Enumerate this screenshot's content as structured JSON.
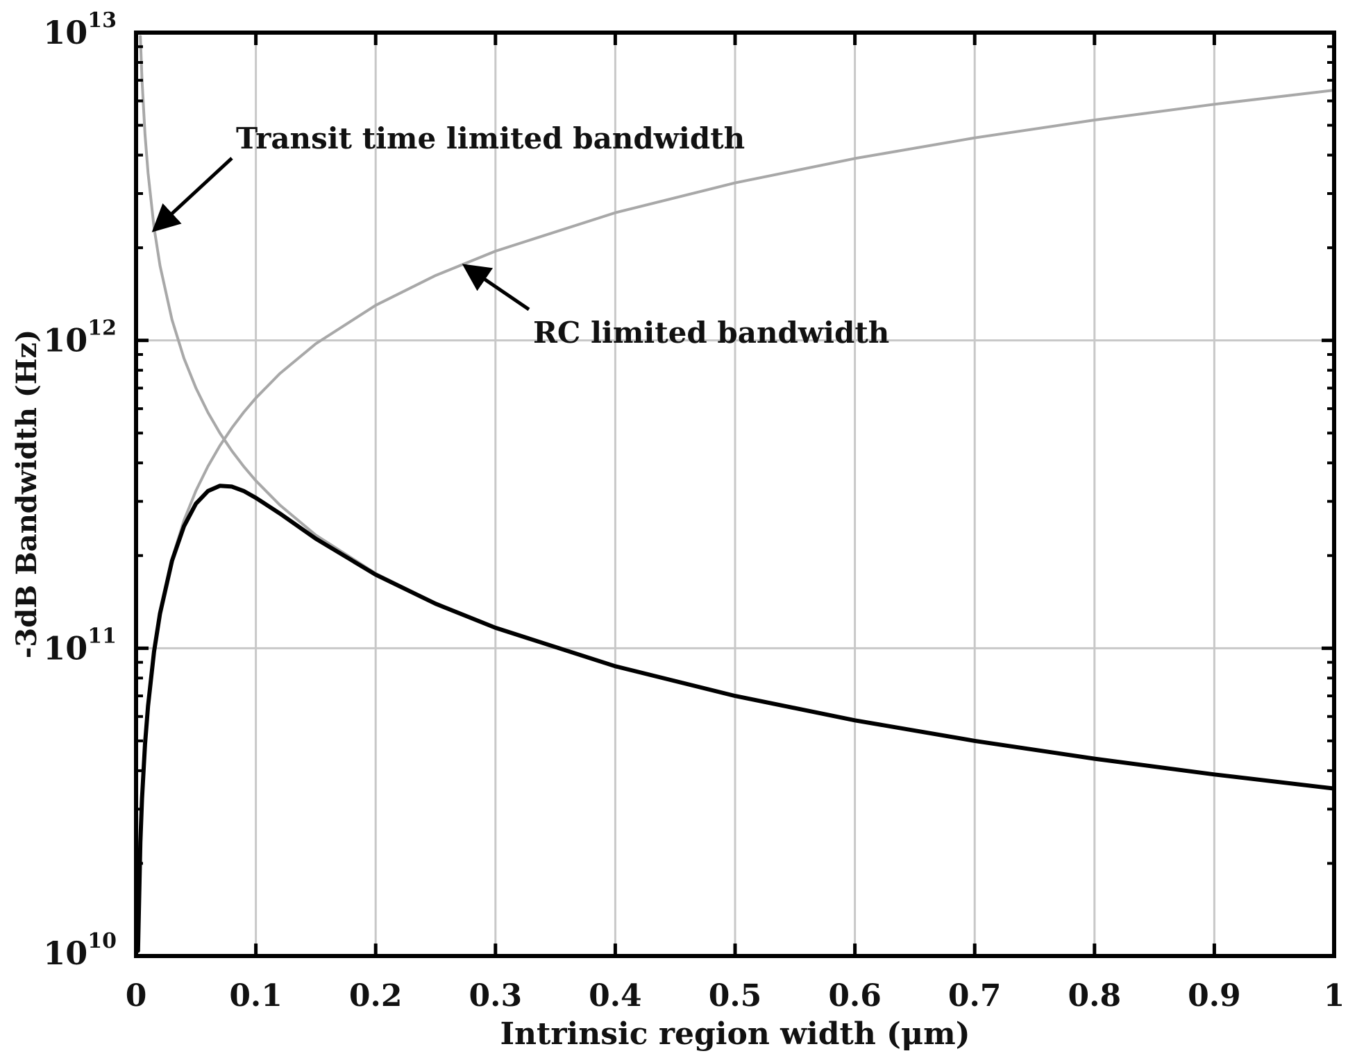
{
  "chart_data": {
    "type": "line",
    "title": "",
    "xlabel": "Intrinsic region width (μm)",
    "ylabel": "-3dB Bandwidth (Hz)",
    "xlim": [
      0,
      1
    ],
    "ylim": [
      10000000000.0,
      10000000000000.0
    ],
    "yscale": "log",
    "grid": true,
    "x_ticks": [
      "0",
      "0.1",
      "0.2",
      "0.3",
      "0.4",
      "0.5",
      "0.6",
      "0.7",
      "0.8",
      "0.9",
      "1"
    ],
    "y_ticks": [
      {
        "base": "10",
        "exp": "10"
      },
      {
        "base": "10",
        "exp": "11"
      },
      {
        "base": "10",
        "exp": "12"
      },
      {
        "base": "10",
        "exp": "13"
      }
    ],
    "series": [
      {
        "color": "#a8a8a8",
        "x": [
          0.0036,
          0.005,
          0.0075,
          0.01,
          0.015,
          0.02,
          0.03,
          0.04,
          0.05,
          0.06,
          0.07,
          0.08,
          0.09,
          0.1,
          0.12,
          0.15,
          0.2,
          0.25,
          0.3,
          0.4,
          0.5,
          0.6,
          0.7,
          0.8,
          0.9,
          1.0
        ],
        "y": [
          9720000000000.0,
          7000000000000.0,
          4670000000000.0,
          3500000000000.0,
          2330000000000.0,
          1750000000000.0,
          1167000000000.0,
          875000000000.0,
          700000000000.0,
          583000000000.0,
          500000000000.0,
          437500000000.0,
          389000000000.0,
          350000000000.0,
          292000000000.0,
          233000000000.0,
          175000000000.0,
          140000000000.0,
          116700000000.0,
          87500000000.0,
          70000000000.0,
          58300000000.0,
          50000000000.0,
          43750000000.0,
          38900000000.0,
          35000000000.0
        ]
      },
      {
        "color": "#a8a8a8",
        "x": [
          0.0016,
          0.0036,
          0.005,
          0.0075,
          0.01,
          0.015,
          0.02,
          0.03,
          0.04,
          0.05,
          0.06,
          0.07,
          0.08,
          0.09,
          0.1,
          0.12,
          0.15,
          0.2,
          0.25,
          0.3,
          0.4,
          0.5,
          0.6,
          0.7,
          0.8,
          0.9,
          1.0
        ],
        "y": [
          10400000000.0,
          23400000000.0,
          32500000000.0,
          48750000000.0,
          65000000000.0,
          97500000000.0,
          130000000000.0,
          195000000000.0,
          260000000000.0,
          325000000000.0,
          390000000000.0,
          455000000000.0,
          520000000000.0,
          585000000000.0,
          650000000000.0,
          780000000000.0,
          975000000000.0,
          1300000000000.0,
          1625000000000.0,
          1950000000000.0,
          2600000000000.0,
          3250000000000.0,
          3900000000000.0,
          4550000000000.0,
          5200000000000.0,
          5850000000000.0,
          6500000000000.0
        ]
      },
      {
        "color": "#000000",
        "x": [
          0.0016,
          0.0036,
          0.005,
          0.0075,
          0.01,
          0.015,
          0.02,
          0.03,
          0.04,
          0.05,
          0.06,
          0.07,
          0.08,
          0.09,
          0.1,
          0.12,
          0.15,
          0.2,
          0.25,
          0.3,
          0.4,
          0.5,
          0.6,
          0.7,
          0.8,
          0.9,
          1.0
        ],
        "y": [
          10400000000.0,
          23400000000.0,
          32500000000.0,
          48700000000.0,
          65000000000.0,
          97400000000.0,
          129600000000.0,
          192300000000.0,
          249000000000.0,
          295000000000.0,
          324000000000.0,
          337000000000.0,
          335000000000.0,
          324000000000.0,
          308000000000.0,
          274000000000.0,
          227000000000.0,
          173400000000.0,
          139500000000.0,
          116500000000.0,
          87400000000.0,
          70000000000.0,
          58300000000.0,
          50000000000.0,
          43750000000.0,
          38900000000.0,
          35000000000.0
        ]
      }
    ],
    "annotations": [
      {
        "text": "Transit time limited bandwidth",
        "points_to_x": 0.016,
        "points_to_y": 2200000000000.0
      },
      {
        "text": "RC limited bandwidth",
        "points_to_x": 0.275,
        "points_to_y": 1800000000000.0
      }
    ]
  }
}
